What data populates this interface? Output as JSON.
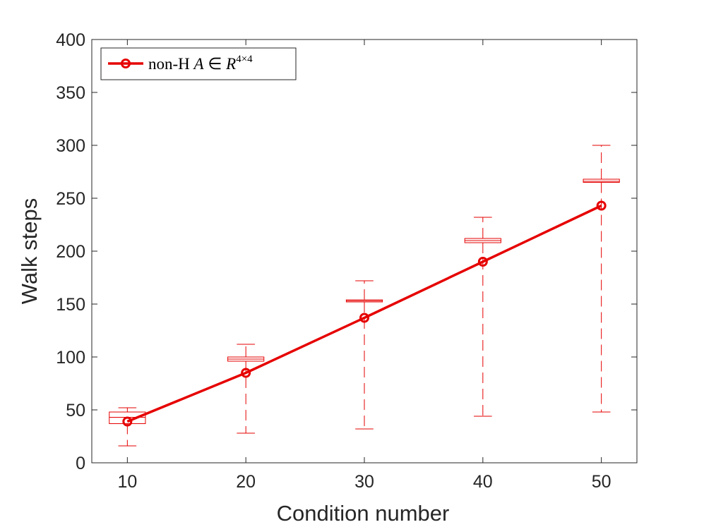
{
  "chart_data": {
    "type": "line",
    "title": "",
    "xlabel": "Condition number",
    "ylabel": "Walk steps",
    "xlim": [
      7,
      53
    ],
    "ylim": [
      0,
      400
    ],
    "xticks": [
      "10",
      "20",
      "30",
      "40",
      "50"
    ],
    "yticks": [
      "0",
      "50",
      "100",
      "150",
      "200",
      "250",
      "300",
      "350",
      "400"
    ],
    "grid": false,
    "legend_position": "top-left",
    "series": [
      {
        "name": "non-H",
        "legend_math": {
          "var": "A",
          "symbol": "∈",
          "space": "R",
          "exponent": "4×4"
        },
        "color": "#e60000",
        "marker": "circle",
        "x": [
          10,
          20,
          30,
          40,
          50
        ],
        "y": [
          39,
          85,
          137,
          190,
          243
        ]
      }
    ],
    "boxplots": [
      {
        "x": 10,
        "whisker_low": 16,
        "q1": 37,
        "median": 43,
        "q3": 48,
        "whisker_high": 52
      },
      {
        "x": 20,
        "whisker_low": 28,
        "q1": 96,
        "median": 98,
        "q3": 100,
        "whisker_high": 112
      },
      {
        "x": 30,
        "whisker_low": 32,
        "q1": 152,
        "median": 153,
        "q3": 154,
        "whisker_high": 172
      },
      {
        "x": 40,
        "whisker_low": 44,
        "q1": 208,
        "median": 210,
        "q3": 212,
        "whisker_high": 232
      },
      {
        "x": 50,
        "whisker_low": 48,
        "q1": 265,
        "median": 266,
        "q3": 268,
        "whisker_high": 300
      }
    ]
  }
}
